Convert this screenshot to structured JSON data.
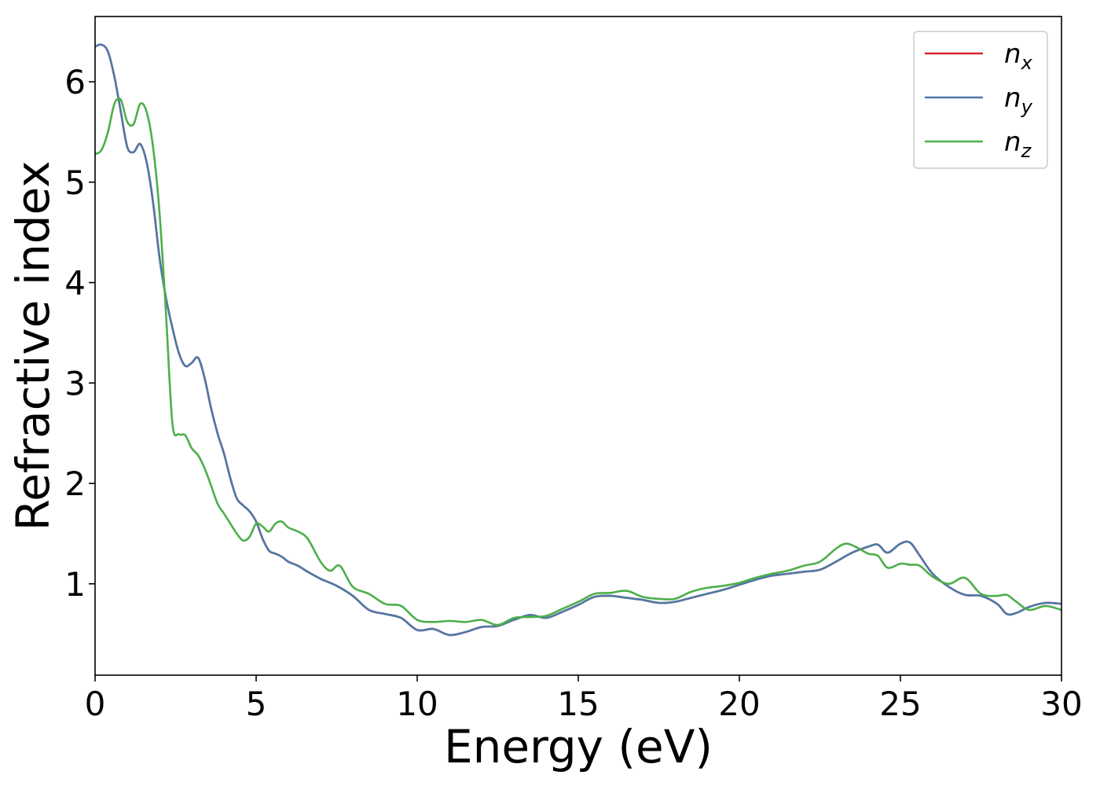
{
  "chart_data": {
    "type": "line",
    "xlabel": "Energy (eV)",
    "ylabel": "Refractive index",
    "xlim": [
      0,
      30
    ],
    "ylim": [
      0.09,
      6.65
    ],
    "xticks": [
      0,
      5,
      10,
      15,
      20,
      25,
      30
    ],
    "yticks": [
      1,
      2,
      3,
      4,
      5,
      6
    ],
    "grid": false,
    "legend_position": "top-right",
    "series": [
      {
        "name": "n_x",
        "label_base": "n",
        "label_sub": "x",
        "color": "#d62728",
        "x": [
          0,
          0.2,
          0.4,
          0.6,
          0.8,
          1.0,
          1.2,
          1.4,
          1.6,
          1.8,
          2.0,
          2.2,
          2.4,
          2.6,
          2.8,
          3.0,
          3.2,
          3.4,
          3.6,
          3.8,
          4.0,
          4.2,
          4.4,
          4.6,
          4.8,
          5.0,
          5.2,
          5.4,
          5.6,
          5.8,
          6.0,
          6.3,
          6.6,
          7.0,
          7.5,
          8.0,
          8.5,
          9.0,
          9.5,
          10.0,
          10.5,
          11.0,
          11.5,
          12.0,
          12.5,
          13.0,
          13.5,
          14.0,
          14.5,
          15.0,
          15.5,
          16.0,
          16.5,
          17.0,
          17.5,
          18.0,
          18.5,
          19.0,
          19.5,
          20.0,
          20.5,
          21.0,
          21.5,
          22.0,
          22.5,
          23.0,
          23.5,
          24.0,
          24.3,
          24.6,
          25.0,
          25.3,
          25.6,
          26.0,
          26.5,
          27.0,
          27.5,
          28.0,
          28.3,
          28.6,
          29.0,
          29.5,
          30.0
        ],
        "y": [
          6.35,
          6.37,
          6.3,
          6.05,
          5.7,
          5.35,
          5.3,
          5.38,
          5.2,
          4.8,
          4.25,
          3.85,
          3.55,
          3.3,
          3.17,
          3.2,
          3.25,
          3.05,
          2.75,
          2.5,
          2.3,
          2.05,
          1.85,
          1.78,
          1.72,
          1.62,
          1.45,
          1.33,
          1.3,
          1.27,
          1.22,
          1.18,
          1.12,
          1.05,
          0.98,
          0.88,
          0.74,
          0.7,
          0.66,
          0.54,
          0.55,
          0.49,
          0.52,
          0.57,
          0.58,
          0.64,
          0.69,
          0.66,
          0.72,
          0.79,
          0.87,
          0.88,
          0.86,
          0.84,
          0.81,
          0.82,
          0.86,
          0.9,
          0.94,
          0.99,
          1.04,
          1.08,
          1.1,
          1.12,
          1.14,
          1.22,
          1.31,
          1.37,
          1.39,
          1.31,
          1.4,
          1.41,
          1.28,
          1.1,
          0.97,
          0.89,
          0.88,
          0.8,
          0.7,
          0.71,
          0.77,
          0.81,
          0.8
        ]
      },
      {
        "name": "n_y",
        "label_base": "n",
        "label_sub": "y",
        "color": "#4e79a7",
        "x": [
          0,
          0.2,
          0.4,
          0.6,
          0.8,
          1.0,
          1.2,
          1.4,
          1.6,
          1.8,
          2.0,
          2.2,
          2.4,
          2.6,
          2.8,
          3.0,
          3.2,
          3.4,
          3.6,
          3.8,
          4.0,
          4.2,
          4.4,
          4.6,
          4.8,
          5.0,
          5.2,
          5.4,
          5.6,
          5.8,
          6.0,
          6.3,
          6.6,
          7.0,
          7.5,
          8.0,
          8.5,
          9.0,
          9.5,
          10.0,
          10.5,
          11.0,
          11.5,
          12.0,
          12.5,
          13.0,
          13.5,
          14.0,
          14.5,
          15.0,
          15.5,
          16.0,
          16.5,
          17.0,
          17.5,
          18.0,
          18.5,
          19.0,
          19.5,
          20.0,
          20.5,
          21.0,
          21.5,
          22.0,
          22.5,
          23.0,
          23.5,
          24.0,
          24.3,
          24.6,
          25.0,
          25.3,
          25.6,
          26.0,
          26.5,
          27.0,
          27.5,
          28.0,
          28.3,
          28.6,
          29.0,
          29.5,
          30.0
        ],
        "y": [
          6.35,
          6.37,
          6.3,
          6.05,
          5.7,
          5.35,
          5.3,
          5.38,
          5.2,
          4.8,
          4.25,
          3.85,
          3.55,
          3.3,
          3.17,
          3.2,
          3.25,
          3.05,
          2.75,
          2.5,
          2.3,
          2.05,
          1.85,
          1.78,
          1.72,
          1.62,
          1.45,
          1.33,
          1.3,
          1.27,
          1.22,
          1.18,
          1.12,
          1.05,
          0.98,
          0.88,
          0.74,
          0.7,
          0.66,
          0.54,
          0.55,
          0.49,
          0.52,
          0.57,
          0.58,
          0.64,
          0.69,
          0.66,
          0.72,
          0.79,
          0.87,
          0.88,
          0.86,
          0.84,
          0.81,
          0.82,
          0.86,
          0.9,
          0.94,
          0.99,
          1.04,
          1.08,
          1.1,
          1.12,
          1.14,
          1.22,
          1.31,
          1.37,
          1.39,
          1.31,
          1.4,
          1.41,
          1.28,
          1.1,
          0.97,
          0.89,
          0.88,
          0.8,
          0.7,
          0.71,
          0.77,
          0.81,
          0.8
        ]
      },
      {
        "name": "n_z",
        "label_base": "n",
        "label_sub": "z",
        "color": "#4daf4a",
        "x": [
          0,
          0.2,
          0.4,
          0.6,
          0.8,
          1.0,
          1.2,
          1.4,
          1.6,
          1.8,
          2.0,
          2.2,
          2.4,
          2.6,
          2.8,
          3.0,
          3.2,
          3.4,
          3.6,
          3.8,
          4.0,
          4.2,
          4.4,
          4.6,
          4.8,
          5.0,
          5.2,
          5.4,
          5.6,
          5.8,
          6.0,
          6.3,
          6.6,
          7.0,
          7.3,
          7.6,
          8.0,
          8.5,
          9.0,
          9.5,
          10.0,
          10.5,
          11.0,
          11.5,
          12.0,
          12.5,
          13.0,
          13.5,
          14.0,
          14.5,
          15.0,
          15.5,
          16.0,
          16.5,
          17.0,
          17.5,
          18.0,
          18.5,
          19.0,
          19.5,
          20.0,
          20.5,
          21.0,
          21.5,
          22.0,
          22.5,
          23.0,
          23.3,
          23.6,
          24.0,
          24.3,
          24.6,
          25.0,
          25.3,
          25.6,
          26.0,
          26.5,
          27.0,
          27.5,
          28.0,
          28.3,
          28.6,
          29.0,
          29.5,
          30.0
        ],
        "y": [
          5.28,
          5.32,
          5.5,
          5.78,
          5.82,
          5.6,
          5.58,
          5.78,
          5.7,
          5.35,
          4.7,
          3.7,
          2.6,
          2.49,
          2.48,
          2.35,
          2.28,
          2.15,
          1.98,
          1.8,
          1.7,
          1.6,
          1.5,
          1.43,
          1.47,
          1.6,
          1.57,
          1.52,
          1.6,
          1.62,
          1.56,
          1.52,
          1.45,
          1.22,
          1.13,
          1.18,
          0.97,
          0.9,
          0.8,
          0.78,
          0.64,
          0.62,
          0.63,
          0.62,
          0.64,
          0.59,
          0.66,
          0.67,
          0.68,
          0.75,
          0.82,
          0.9,
          0.91,
          0.93,
          0.87,
          0.85,
          0.85,
          0.92,
          0.96,
          0.98,
          1.01,
          1.06,
          1.1,
          1.13,
          1.18,
          1.22,
          1.35,
          1.4,
          1.37,
          1.3,
          1.28,
          1.16,
          1.2,
          1.19,
          1.18,
          1.07,
          1.0,
          1.06,
          0.9,
          0.88,
          0.89,
          0.82,
          0.74,
          0.78,
          0.74
        ]
      }
    ]
  }
}
